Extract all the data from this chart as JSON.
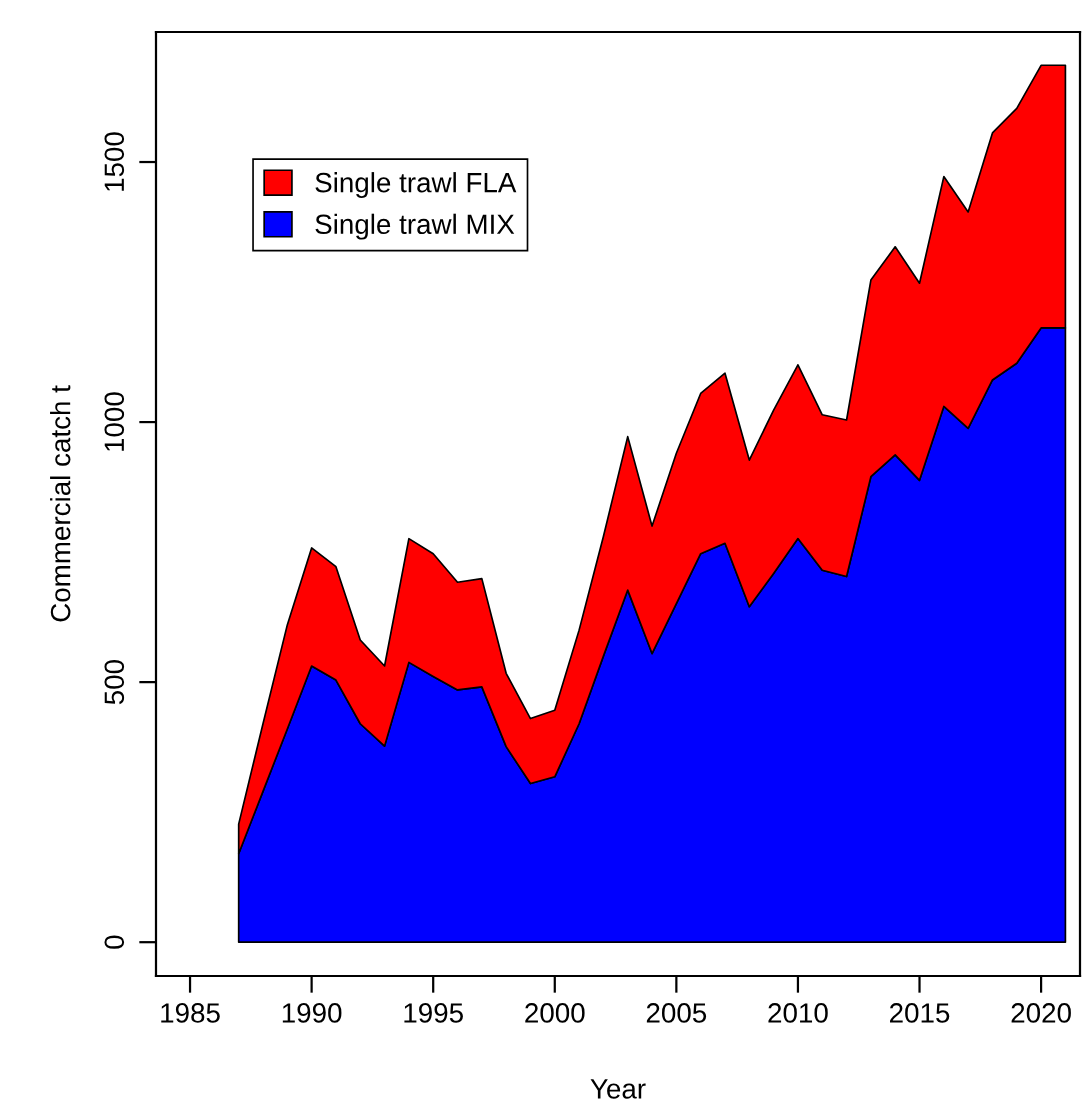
{
  "chart_data": {
    "type": "area",
    "stacked": true,
    "xlabel": "Year",
    "ylabel": "Commercial catch t",
    "x": [
      1987,
      1988,
      1989,
      1990,
      1991,
      1992,
      1993,
      1994,
      1995,
      1996,
      1997,
      1998,
      1999,
      2000,
      2001,
      2002,
      2003,
      2004,
      2005,
      2006,
      2007,
      2008,
      2009,
      2010,
      2011,
      2012,
      2013,
      2014,
      2015,
      2016,
      2017,
      2018,
      2019,
      2020,
      2021
    ],
    "series": [
      {
        "name": "Single trawl MIX",
        "color": "#0000ff",
        "values": [
          170,
          290,
          410,
          531,
          504,
          420,
          377,
          538,
          511,
          485,
          491,
          376,
          305,
          318,
          420,
          550,
          677,
          555,
          651,
          747,
          767,
          645,
          709,
          776,
          715,
          703,
          895,
          937,
          888,
          1030,
          988,
          1081,
          1113,
          1181,
          1181
        ]
      },
      {
        "name": "Single trawl FLA",
        "color": "#ff0000",
        "values": [
          57,
          130,
          200,
          227,
          218,
          161,
          154,
          238,
          236,
          207,
          208,
          141,
          125,
          128,
          180,
          230,
          295,
          245,
          289,
          308,
          327,
          282,
          314,
          334,
          299,
          301,
          378,
          400,
          379,
          442,
          416,
          475,
          490,
          505,
          505
        ]
      }
    ],
    "xlim": [
      1983.6,
      2021.6
    ],
    "ylim": [
      -65,
      1750
    ],
    "xticks": [
      1985,
      1990,
      1995,
      2000,
      2005,
      2010,
      2015,
      2020
    ],
    "yticks": [
      0,
      500,
      1000,
      1500
    ],
    "grid": false,
    "legend": "top left"
  }
}
